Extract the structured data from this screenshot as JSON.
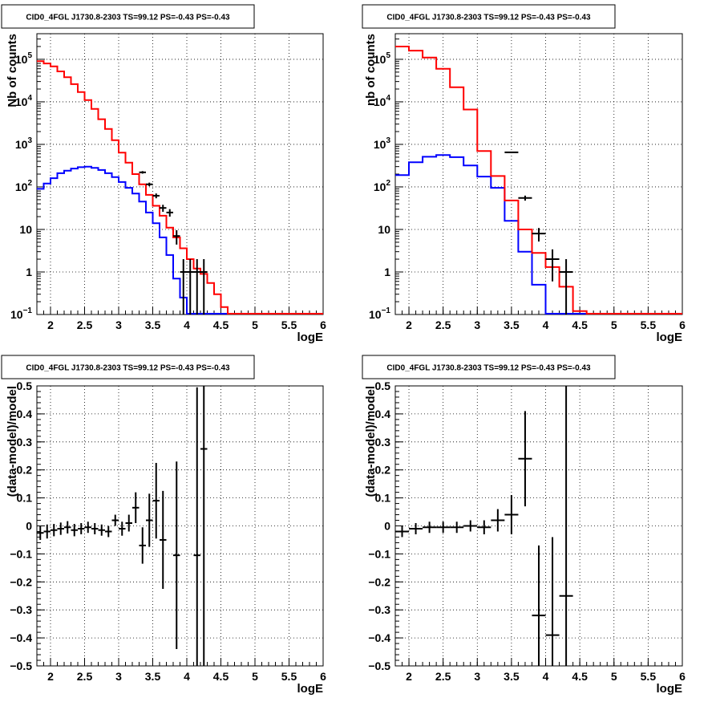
{
  "colors": {
    "model": "#ff0000",
    "source": "#0000ff",
    "data": "#000000",
    "grid": "#000000"
  },
  "chart_data": [
    {
      "id": "counts-left",
      "type": "line",
      "title": "CID0_4FGL J1730.8-2303 TS=99.12 PS=-0.43 PS=-0.43",
      "xlabel": "logE",
      "ylabel": "Nb of counts",
      "xlim": [
        1.8,
        6.0
      ],
      "ylim": [
        0.1,
        400000
      ],
      "log_y": true,
      "grid": true,
      "x_ticks": [
        "2",
        "2.5",
        "3",
        "3.5",
        "4",
        "4.5",
        "5",
        "5.5",
        "6"
      ],
      "y_ticks": [
        "10^-1",
        "1",
        "10",
        "10^2",
        "10^3",
        "10^4",
        "10^5"
      ],
      "bin_edges": [
        1.8,
        1.9,
        2.0,
        2.1,
        2.2,
        2.3,
        2.4,
        2.5,
        2.6,
        2.7,
        2.8,
        2.9,
        3.0,
        3.1,
        3.2,
        3.3,
        3.4,
        3.5,
        3.6,
        3.7,
        3.8,
        3.9,
        4.0,
        4.1,
        4.2,
        4.3,
        4.4,
        4.5,
        4.6,
        4.7,
        4.8,
        4.9,
        5.0,
        5.1,
        5.2,
        5.3,
        5.4,
        5.5,
        5.6,
        5.7,
        5.8,
        5.9,
        6.0
      ],
      "series": [
        {
          "name": "",
          "role": "model",
          "values": [
            90000,
            80000,
            68000,
            52000,
            38000,
            26000,
            17000,
            11000,
            6800,
            3900,
            2300,
            1250,
            640,
            370,
            200,
            115,
            65,
            36,
            21,
            11,
            6.5,
            3.6,
            2.0,
            1.2,
            0.9,
            0.55,
            0.3,
            0.15,
            0.1,
            0.1,
            0.1,
            0.1,
            0.1,
            0.1,
            0.1,
            0.1,
            0.1,
            0.1,
            0.1,
            0.1,
            0.1,
            0.1
          ]
        },
        {
          "name": "",
          "role": "source",
          "values": [
            90,
            120,
            160,
            210,
            240,
            270,
            290,
            300,
            280,
            250,
            210,
            170,
            130,
            95,
            70,
            45,
            25,
            14,
            6.5,
            2.5,
            0.7,
            0.25,
            0.1,
            0.1,
            0.1,
            0.1,
            0.1,
            0.1,
            0.1,
            0.1,
            0.1,
            0.1,
            0.1,
            0.1,
            0.1,
            0.1,
            0.1,
            0.1,
            0.1,
            0.1,
            0.1,
            0.1
          ]
        }
      ],
      "points": [
        {
          "x": 3.35,
          "y": 220,
          "yerr": 15
        },
        {
          "x": 3.45,
          "y": 115,
          "yerr": 11
        },
        {
          "x": 3.55,
          "y": 62,
          "yerr": 8
        },
        {
          "x": 3.65,
          "y": 32,
          "yerr": 6
        },
        {
          "x": 3.75,
          "y": 25,
          "yerr": 5
        },
        {
          "x": 3.85,
          "y": 7,
          "yerr": 2.6
        },
        {
          "x": 3.95,
          "y": 1,
          "yerr": 1
        },
        {
          "x": 4.05,
          "y": 1,
          "yerr": 1
        },
        {
          "x": 4.15,
          "y": 1,
          "yerr": 1
        },
        {
          "x": 4.25,
          "y": 1,
          "yerr": 1
        }
      ]
    },
    {
      "id": "counts-right",
      "type": "line",
      "title": "CID0_4FGL J1730.8-2303 TS=99.12 PS=-0.43 PS=-0.43",
      "xlabel": "logE",
      "ylabel": "nb of counts",
      "xlim": [
        1.8,
        6.0
      ],
      "ylim": [
        0.1,
        400000
      ],
      "log_y": true,
      "grid": true,
      "x_ticks": [
        "2",
        "2.5",
        "3",
        "3.5",
        "4",
        "4.5",
        "5",
        "5.5",
        "6"
      ],
      "y_ticks": [
        "10^-1",
        "1",
        "10",
        "10^2",
        "10^3",
        "10^4",
        "10^5"
      ],
      "bin_edges": [
        1.8,
        2.0,
        2.2,
        2.4,
        2.6,
        2.8,
        3.0,
        3.2,
        3.4,
        3.6,
        3.8,
        4.0,
        4.2,
        4.4,
        4.6,
        4.8,
        5.0,
        5.2,
        5.4,
        5.6,
        5.8,
        6.0
      ],
      "series": [
        {
          "name": "",
          "role": "model",
          "values": [
            200000,
            160000,
            110000,
            60000,
            22000,
            6600,
            700,
            180,
            48,
            10,
            2.8,
            1.3,
            0.45,
            0.12,
            0.1,
            0.1,
            0.1,
            0.1,
            0.1,
            0.1,
            0.1
          ]
        },
        {
          "name": "",
          "role": "source",
          "values": [
            190,
            380,
            510,
            560,
            500,
            320,
            175,
            95,
            16,
            3.0,
            0.5,
            0.1,
            0.1,
            0.1,
            0.1,
            0.1,
            0.1,
            0.1,
            0.1,
            0.1,
            0.1
          ]
        }
      ],
      "points": [
        {
          "x": 3.5,
          "y": 650,
          "yerr": 25
        },
        {
          "x": 3.7,
          "y": 55,
          "yerr": 7.4
        },
        {
          "x": 3.9,
          "y": 8,
          "yerr": 2.8
        },
        {
          "x": 4.1,
          "y": 2,
          "yerr": 1.4
        },
        {
          "x": 4.3,
          "y": 1,
          "yerr": 1
        }
      ]
    },
    {
      "id": "residuals-left",
      "type": "scatter",
      "title": "CID0_4FGL J1730.8-2303 TS=99.12 PS=-0.43 PS=-0.43",
      "xlabel": "logE",
      "ylabel": "(data-model)/model",
      "xlim": [
        1.8,
        6.0
      ],
      "ylim": [
        -0.5,
        0.5
      ],
      "log_y": false,
      "grid": true,
      "x_ticks": [
        "2",
        "2.5",
        "3",
        "3.5",
        "4",
        "4.5",
        "5",
        "5.5",
        "6"
      ],
      "y_ticks": [
        "−0.5",
        "−0.4",
        "−0.3",
        "−0.2",
        "−0.1",
        "0",
        "0.1",
        "0.2",
        "0.3",
        "0.4",
        "0.5"
      ],
      "points": [
        {
          "x": 1.85,
          "y": -0.025,
          "yerr": 0.025,
          "xerr": 0.05
        },
        {
          "x": 1.95,
          "y": -0.02,
          "yerr": 0.025,
          "xerr": 0.05
        },
        {
          "x": 2.05,
          "y": -0.015,
          "yerr": 0.022,
          "xerr": 0.05
        },
        {
          "x": 2.15,
          "y": -0.01,
          "yerr": 0.022,
          "xerr": 0.05
        },
        {
          "x": 2.25,
          "y": -0.005,
          "yerr": 0.022,
          "xerr": 0.05
        },
        {
          "x": 2.35,
          "y": -0.015,
          "yerr": 0.022,
          "xerr": 0.05
        },
        {
          "x": 2.45,
          "y": -0.01,
          "yerr": 0.02,
          "xerr": 0.05
        },
        {
          "x": 2.55,
          "y": -0.005,
          "yerr": 0.02,
          "xerr": 0.05
        },
        {
          "x": 2.65,
          "y": -0.01,
          "yerr": 0.02,
          "xerr": 0.05
        },
        {
          "x": 2.75,
          "y": -0.015,
          "yerr": 0.02,
          "xerr": 0.05
        },
        {
          "x": 2.85,
          "y": -0.02,
          "yerr": 0.02,
          "xerr": 0.05
        },
        {
          "x": 2.95,
          "y": 0.02,
          "yerr": 0.02,
          "xerr": 0.05
        },
        {
          "x": 3.05,
          "y": -0.01,
          "yerr": 0.025,
          "xerr": 0.05
        },
        {
          "x": 3.15,
          "y": 0.01,
          "yerr": 0.03,
          "xerr": 0.05
        },
        {
          "x": 3.25,
          "y": 0.065,
          "yerr": 0.055,
          "xerr": 0.05
        },
        {
          "x": 3.35,
          "y": -0.07,
          "yerr": 0.065,
          "xerr": 0.05
        },
        {
          "x": 3.45,
          "y": 0.02,
          "yerr": 0.095,
          "xerr": 0.05
        },
        {
          "x": 3.55,
          "y": 0.09,
          "yerr": 0.135,
          "xerr": 0.05
        },
        {
          "x": 3.65,
          "y": -0.05,
          "yerr": 0.175,
          "xerr": 0.05
        },
        {
          "x": 3.85,
          "y": -0.105,
          "yerr": 0.335,
          "xerr": 0.05
        },
        {
          "x": 4.15,
          "y": -0.105,
          "yerr": 0.6,
          "xerr": 0.05
        },
        {
          "x": 4.25,
          "y": 0.275,
          "yerr": 0.9,
          "xerr": 0.05
        }
      ]
    },
    {
      "id": "residuals-right",
      "type": "scatter",
      "title": "CID0_4FGL J1730.8-2303 TS=99.12 PS=-0.43 PS=-0.43",
      "xlabel": "logE",
      "ylabel": "(data-model)/model",
      "xlim": [
        1.8,
        6.0
      ],
      "ylim": [
        -0.5,
        0.5
      ],
      "log_y": false,
      "grid": true,
      "x_ticks": [
        "2",
        "2.5",
        "3",
        "3.5",
        "4",
        "4.5",
        "5",
        "5.5",
        "6"
      ],
      "y_ticks": [
        "−0.5",
        "−0.4",
        "−0.3",
        "−0.2",
        "−0.1",
        "0",
        "0.1",
        "0.2",
        "0.3",
        "0.4",
        "0.5"
      ],
      "points": [
        {
          "x": 1.9,
          "y": -0.02,
          "yerr": 0.02,
          "xerr": 0.1
        },
        {
          "x": 2.1,
          "y": -0.01,
          "yerr": 0.02,
          "xerr": 0.1
        },
        {
          "x": 2.3,
          "y": -0.005,
          "yerr": 0.02,
          "xerr": 0.1
        },
        {
          "x": 2.5,
          "y": -0.005,
          "yerr": 0.02,
          "xerr": 0.1
        },
        {
          "x": 2.7,
          "y": -0.005,
          "yerr": 0.02,
          "xerr": 0.1
        },
        {
          "x": 2.9,
          "y": 0.0,
          "yerr": 0.02,
          "xerr": 0.1
        },
        {
          "x": 3.1,
          "y": -0.005,
          "yerr": 0.025,
          "xerr": 0.1
        },
        {
          "x": 3.3,
          "y": 0.02,
          "yerr": 0.04,
          "xerr": 0.1
        },
        {
          "x": 3.5,
          "y": 0.04,
          "yerr": 0.07,
          "xerr": 0.1
        },
        {
          "x": 3.7,
          "y": 0.24,
          "yerr": 0.17,
          "xerr": 0.1
        },
        {
          "x": 3.9,
          "y": -0.32,
          "yerr": 0.25,
          "xerr": 0.1
        },
        {
          "x": 4.1,
          "y": -0.39,
          "yerr": 0.35,
          "xerr": 0.1
        },
        {
          "x": 4.3,
          "y": -0.25,
          "yerr": 0.9,
          "xerr": 0.1
        }
      ]
    }
  ]
}
